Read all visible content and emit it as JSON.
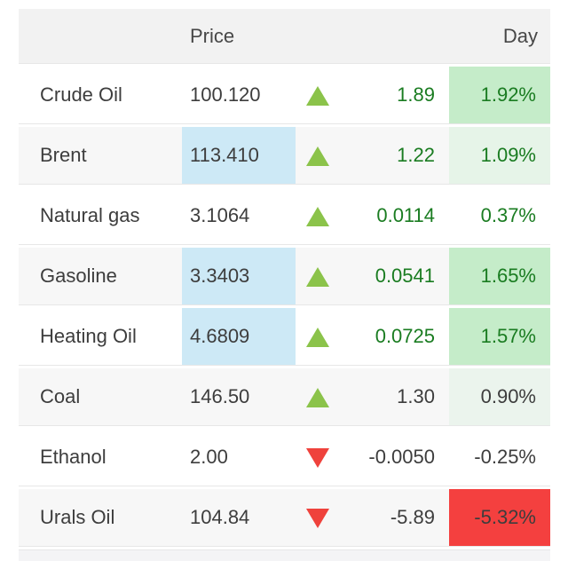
{
  "headers": {
    "price": "Price",
    "day": "Day"
  },
  "rows": [
    {
      "name": "Crude Oil",
      "price": "100.120",
      "direction": "up",
      "change": "1.89",
      "day": "1.92%",
      "price_flash": false,
      "change_text": "green",
      "day_text": "green",
      "day_bg": "strong-green"
    },
    {
      "name": "Brent",
      "price": "113.410",
      "direction": "up",
      "change": "1.22",
      "day": "1.09%",
      "price_flash": true,
      "change_text": "green",
      "day_text": "green",
      "day_bg": "light-green"
    },
    {
      "name": "Natural gas",
      "price": "3.1064",
      "direction": "up",
      "change": "0.0114",
      "day": "0.37%",
      "price_flash": false,
      "change_text": "green",
      "day_text": "green",
      "day_bg": "none"
    },
    {
      "name": "Gasoline",
      "price": "3.3403",
      "direction": "up",
      "change": "0.0541",
      "day": "1.65%",
      "price_flash": true,
      "change_text": "green",
      "day_text": "green",
      "day_bg": "strong-green"
    },
    {
      "name": "Heating Oil",
      "price": "4.6809",
      "direction": "up",
      "change": "0.0725",
      "day": "1.57%",
      "price_flash": true,
      "change_text": "green",
      "day_text": "green",
      "day_bg": "strong-green"
    },
    {
      "name": "Coal",
      "price": "146.50",
      "direction": "up",
      "change": "1.30",
      "day": "0.90%",
      "price_flash": false,
      "change_text": "dark",
      "day_text": "dark",
      "day_bg": "faint-green"
    },
    {
      "name": "Ethanol",
      "price": "2.00",
      "direction": "down",
      "change": "-0.0050",
      "day": "-0.25%",
      "price_flash": false,
      "change_text": "dark",
      "day_text": "dark",
      "day_bg": "none"
    },
    {
      "name": "Urals Oil",
      "price": "104.84",
      "direction": "down",
      "change": "-5.89",
      "day": "-5.32%",
      "price_flash": false,
      "change_text": "dark",
      "day_text": "dark",
      "day_bg": "red"
    }
  ],
  "colors": {
    "header_bg": "#f2f2f2",
    "header_text": "#474747",
    "row_alt_bg": "#f7f7f7",
    "text_dark": "#3d3d3d",
    "text_green": "#1a7c21",
    "up_arrow": "#8bc34a",
    "down_arrow": "#ef423c",
    "price_flash_bg": "#cde9f6",
    "day_green_strong": "#c5ecc9",
    "day_green_light": "#e6f4e8",
    "day_green_faint": "#ebf4ed",
    "day_red": "#f4403f",
    "separator": "#e7e7e7",
    "partial_row_bg": "#f4f4f6"
  }
}
